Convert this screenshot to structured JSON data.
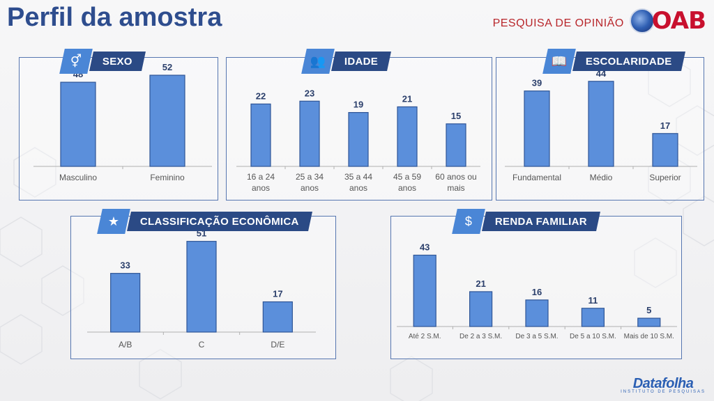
{
  "page": {
    "title": "Perfil da amostra"
  },
  "brand": {
    "survey_label": "PESQUISA DE OPINIÃO",
    "logo_text": "OAB"
  },
  "footer": {
    "logo_text": "Datafolha",
    "logo_sub": "INSTITUTO DE PESQUISAS"
  },
  "panels": {
    "sexo": {
      "label": "SEXO",
      "icon": "gender-icon"
    },
    "idade": {
      "label": "IDADE",
      "icon": "people-icon"
    },
    "escolaridade": {
      "label": "ESCOLARIDADE",
      "icon": "book-icon"
    },
    "classificacao": {
      "label": "CLASSIFICAÇÃO ECONÔMICA",
      "icon": "star-badge-icon"
    },
    "renda": {
      "label": "RENDA FAMILIAR",
      "icon": "dollar-icon"
    }
  },
  "colors": {
    "bar": "#5b8fdb",
    "bar_edge": "#2f5596",
    "label": "#2b3f6b",
    "title": "#2e4d8e",
    "tag_dark": "#2b4a85",
    "tag_light": "#4a86d6"
  },
  "chart_data": [
    {
      "id": "sexo",
      "type": "bar",
      "title": "SEXO",
      "categories": [
        [
          "Masculino"
        ],
        [
          "Feminino"
        ]
      ],
      "values": [
        48,
        52
      ],
      "ylim": [
        0,
        60
      ]
    },
    {
      "id": "idade",
      "type": "bar",
      "title": "IDADE",
      "categories": [
        [
          "16 a 24",
          "anos"
        ],
        [
          "25 a 34",
          "anos"
        ],
        [
          "35 a 44",
          "anos"
        ],
        [
          "45 a 59",
          "anos"
        ],
        [
          "60 anos ou",
          "mais"
        ]
      ],
      "values": [
        22,
        23,
        19,
        21,
        15
      ],
      "ylim": [
        0,
        30
      ]
    },
    {
      "id": "escolaridade",
      "type": "bar",
      "title": "ESCOLARIDADE",
      "categories": [
        [
          "Fundamental"
        ],
        [
          "Médio"
        ],
        [
          "Superior"
        ]
      ],
      "values": [
        39,
        44,
        17
      ],
      "ylim": [
        0,
        50
      ]
    },
    {
      "id": "classificacao",
      "type": "bar",
      "title": "CLASSIFICAÇÃO ECONÔMICA",
      "categories": [
        [
          "A/B"
        ],
        [
          "C"
        ],
        [
          "D/E"
        ]
      ],
      "values": [
        33,
        51,
        17
      ],
      "ylim": [
        0,
        60
      ]
    },
    {
      "id": "renda",
      "type": "bar",
      "title": "RENDA FAMILIAR",
      "categories": [
        [
          "Até 2 S.M."
        ],
        [
          "De 2 a 3 S.M."
        ],
        [
          "De 3 a 5 S.M."
        ],
        [
          "De 5 a 10 S.M."
        ],
        [
          "Mais de 10 S.M."
        ]
      ],
      "values": [
        43,
        21,
        16,
        11,
        5
      ],
      "ylim": [
        0,
        55
      ]
    }
  ]
}
